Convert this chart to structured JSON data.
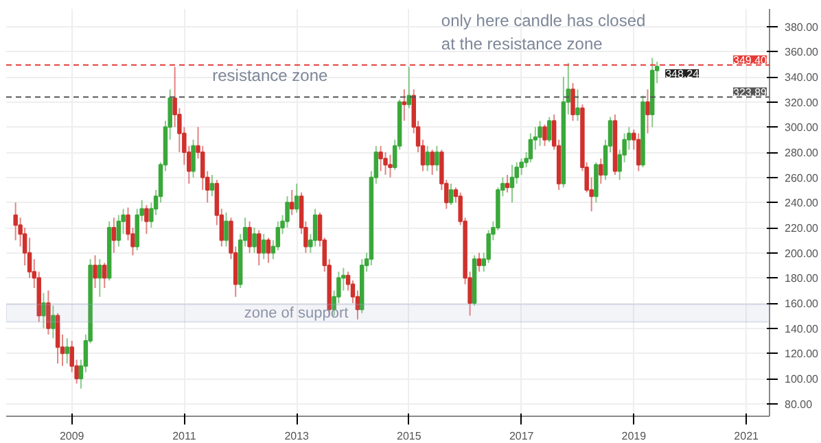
{
  "chart_data": {
    "type": "candlestick",
    "x": [
      "2008-01",
      "2008-02",
      "2008-03",
      "2008-04",
      "2008-05",
      "2008-06",
      "2008-07",
      "2008-08",
      "2008-09",
      "2008-10",
      "2008-11",
      "2008-12",
      "2009-01",
      "2009-02",
      "2009-03",
      "2009-04",
      "2009-05",
      "2009-06",
      "2009-07",
      "2009-08",
      "2009-09",
      "2009-10",
      "2009-11",
      "2009-12",
      "2010-01",
      "2010-02",
      "2010-03",
      "2010-04",
      "2010-05",
      "2010-06",
      "2010-07",
      "2010-08",
      "2010-09",
      "2010-10",
      "2010-11",
      "2010-12",
      "2011-01",
      "2011-02",
      "2011-03",
      "2011-04",
      "2011-05",
      "2011-06",
      "2011-07",
      "2011-08",
      "2011-09",
      "2011-10",
      "2011-11",
      "2011-12",
      "2012-01",
      "2012-02",
      "2012-03",
      "2012-04",
      "2012-05",
      "2012-06",
      "2012-07",
      "2012-08",
      "2012-09",
      "2012-10",
      "2012-11",
      "2012-12",
      "2013-01",
      "2013-02",
      "2013-03",
      "2013-04",
      "2013-05",
      "2013-06",
      "2013-07",
      "2013-08",
      "2013-09",
      "2013-10",
      "2013-11",
      "2013-12",
      "2014-01",
      "2014-02",
      "2014-03",
      "2014-04",
      "2014-05",
      "2014-06",
      "2014-07",
      "2014-08",
      "2014-09",
      "2014-10",
      "2014-11",
      "2014-12",
      "2015-01",
      "2015-02",
      "2015-03",
      "2015-04",
      "2015-05",
      "2015-06",
      "2015-07",
      "2015-08",
      "2015-09",
      "2015-10",
      "2015-11",
      "2015-12",
      "2016-01",
      "2016-02",
      "2016-03",
      "2016-04",
      "2016-05",
      "2016-06",
      "2016-07",
      "2016-08",
      "2016-09",
      "2016-10",
      "2016-11",
      "2016-12",
      "2017-01",
      "2017-02",
      "2017-03",
      "2017-04",
      "2017-05",
      "2017-06",
      "2017-07",
      "2017-08",
      "2017-09",
      "2017-10",
      "2017-11",
      "2017-12",
      "2018-01",
      "2018-02",
      "2018-03",
      "2018-04",
      "2018-05",
      "2018-06",
      "2018-07",
      "2018-08",
      "2018-09",
      "2018-10",
      "2018-11",
      "2018-12",
      "2019-01",
      "2019-02",
      "2019-03",
      "2019-04",
      "2019-05",
      "2019-06"
    ],
    "ohlc": [
      [
        230,
        240,
        210,
        222
      ],
      [
        222,
        228,
        205,
        215
      ],
      [
        215,
        220,
        190,
        200
      ],
      [
        200,
        212,
        180,
        185
      ],
      [
        185,
        195,
        172,
        180
      ],
      [
        180,
        185,
        145,
        150
      ],
      [
        150,
        168,
        140,
        160
      ],
      [
        160,
        170,
        135,
        140
      ],
      [
        140,
        158,
        132,
        150
      ],
      [
        150,
        152,
        112,
        125
      ],
      [
        125,
        135,
        110,
        120
      ],
      [
        120,
        132,
        112,
        125
      ],
      [
        125,
        130,
        105,
        110
      ],
      [
        110,
        115,
        96,
        100
      ],
      [
        100,
        115,
        92,
        110
      ],
      [
        110,
        135,
        105,
        130
      ],
      [
        130,
        195,
        128,
        190
      ],
      [
        190,
        198,
        172,
        180
      ],
      [
        180,
        195,
        165,
        190
      ],
      [
        190,
        192,
        172,
        180
      ],
      [
        180,
        225,
        178,
        220
      ],
      [
        220,
        228,
        200,
        210
      ],
      [
        210,
        230,
        205,
        225
      ],
      [
        225,
        235,
        215,
        230
      ],
      [
        230,
        236,
        210,
        215
      ],
      [
        215,
        220,
        198,
        205
      ],
      [
        205,
        235,
        202,
        230
      ],
      [
        230,
        242,
        225,
        235
      ],
      [
        235,
        238,
        215,
        225
      ],
      [
        225,
        240,
        220,
        235
      ],
      [
        235,
        250,
        230,
        245
      ],
      [
        245,
        272,
        240,
        270
      ],
      [
        270,
        305,
        265,
        300
      ],
      [
        300,
        330,
        290,
        323
      ],
      [
        323,
        348,
        300,
        310
      ],
      [
        310,
        315,
        280,
        295
      ],
      [
        295,
        300,
        270,
        280
      ],
      [
        280,
        285,
        255,
        265
      ],
      [
        265,
        290,
        260,
        285
      ],
      [
        285,
        300,
        275,
        280
      ],
      [
        280,
        285,
        250,
        260
      ],
      [
        260,
        265,
        240,
        250
      ],
      [
        250,
        262,
        245,
        255
      ],
      [
        255,
        258,
        222,
        230
      ],
      [
        230,
        235,
        205,
        210
      ],
      [
        210,
        232,
        205,
        225
      ],
      [
        225,
        228,
        195,
        200
      ],
      [
        200,
        205,
        165,
        175
      ],
      [
        175,
        215,
        172,
        210
      ],
      [
        210,
        228,
        205,
        220
      ],
      [
        220,
        225,
        200,
        205
      ],
      [
        205,
        220,
        200,
        215
      ],
      [
        215,
        218,
        190,
        200
      ],
      [
        200,
        215,
        195,
        210
      ],
      [
        210,
        212,
        192,
        200
      ],
      [
        200,
        210,
        195,
        205
      ],
      [
        205,
        225,
        202,
        220
      ],
      [
        220,
        230,
        215,
        225
      ],
      [
        225,
        245,
        220,
        240
      ],
      [
        240,
        250,
        230,
        235
      ],
      [
        235,
        255,
        232,
        245
      ],
      [
        245,
        248,
        215,
        220
      ],
      [
        220,
        225,
        200,
        205
      ],
      [
        205,
        215,
        200,
        210
      ],
      [
        210,
        235,
        205,
        230
      ],
      [
        230,
        232,
        205,
        210
      ],
      [
        210,
        212,
        185,
        190
      ],
      [
        190,
        195,
        150,
        155
      ],
      [
        155,
        170,
        150,
        165
      ],
      [
        165,
        185,
        160,
        180
      ],
      [
        180,
        188,
        170,
        182
      ],
      [
        182,
        185,
        170,
        175
      ],
      [
        175,
        178,
        160,
        165
      ],
      [
        165,
        170,
        147,
        155
      ],
      [
        155,
        195,
        152,
        190
      ],
      [
        190,
        200,
        185,
        195
      ],
      [
        195,
        265,
        190,
        260
      ],
      [
        260,
        285,
        255,
        280
      ],
      [
        280,
        285,
        265,
        275
      ],
      [
        275,
        280,
        262,
        270
      ],
      [
        270,
        278,
        260,
        268
      ],
      [
        268,
        290,
        266,
        285
      ],
      [
        285,
        322,
        282,
        320
      ],
      [
        320,
        330,
        305,
        318
      ],
      [
        318,
        348,
        315,
        325
      ],
      [
        325,
        330,
        295,
        300
      ],
      [
        300,
        305,
        280,
        285
      ],
      [
        285,
        290,
        265,
        270
      ],
      [
        270,
        285,
        265,
        280
      ],
      [
        280,
        282,
        262,
        270
      ],
      [
        270,
        285,
        265,
        280
      ],
      [
        280,
        282,
        250,
        255
      ],
      [
        255,
        258,
        235,
        240
      ],
      [
        240,
        255,
        238,
        250
      ],
      [
        250,
        252,
        240,
        245
      ],
      [
        245,
        248,
        222,
        225
      ],
      [
        225,
        228,
        175,
        180
      ],
      [
        180,
        185,
        150,
        160
      ],
      [
        160,
        198,
        158,
        195
      ],
      [
        195,
        200,
        185,
        190
      ],
      [
        190,
        200,
        185,
        195
      ],
      [
        195,
        218,
        192,
        215
      ],
      [
        215,
        225,
        210,
        220
      ],
      [
        220,
        252,
        218,
        250
      ],
      [
        250,
        260,
        245,
        255
      ],
      [
        255,
        262,
        248,
        252
      ],
      [
        252,
        270,
        240,
        260
      ],
      [
        260,
        272,
        255,
        268
      ],
      [
        268,
        275,
        262,
        272
      ],
      [
        272,
        280,
        268,
        275
      ],
      [
        275,
        295,
        272,
        290
      ],
      [
        290,
        300,
        282,
        292
      ],
      [
        292,
        305,
        285,
        300
      ],
      [
        300,
        302,
        285,
        290
      ],
      [
        290,
        308,
        288,
        305
      ],
      [
        305,
        310,
        282,
        285
      ],
      [
        285,
        290,
        250,
        255
      ],
      [
        255,
        340,
        252,
        320
      ],
      [
        320,
        351,
        310,
        330
      ],
      [
        330,
        335,
        305,
        310
      ],
      [
        310,
        330,
        305,
        315
      ],
      [
        315,
        318,
        265,
        268
      ],
      [
        268,
        272,
        248,
        250
      ],
      [
        250,
        260,
        233,
        245
      ],
      [
        245,
        272,
        240,
        270
      ],
      [
        270,
        275,
        255,
        262
      ],
      [
        262,
        290,
        258,
        285
      ],
      [
        285,
        308,
        280,
        305
      ],
      [
        305,
        310,
        262,
        265
      ],
      [
        265,
        282,
        258,
        278
      ],
      [
        278,
        295,
        272,
        290
      ],
      [
        290,
        300,
        282,
        295
      ],
      [
        295,
        298,
        282,
        290
      ],
      [
        290,
        295,
        265,
        270
      ],
      [
        270,
        325,
        268,
        320
      ],
      [
        320,
        330,
        295,
        310
      ],
      [
        310,
        355,
        300,
        345
      ],
      [
        345,
        352,
        335,
        348.24
      ]
    ],
    "colors": [
      "#d0312d",
      "#d0312d",
      "#d0312d",
      "#d0312d",
      "#d0312d",
      "#d0312d",
      "#3aa83a",
      "#d0312d",
      "#3aa83a",
      "#d0312d",
      "#d0312d",
      "#3aa83a",
      "#d0312d",
      "#d0312d",
      "#3aa83a",
      "#3aa83a",
      "#3aa83a",
      "#d0312d",
      "#3aa83a",
      "#d0312d",
      "#3aa83a",
      "#d0312d",
      "#3aa83a",
      "#3aa83a",
      "#d0312d",
      "#d0312d",
      "#3aa83a",
      "#3aa83a",
      "#d0312d",
      "#3aa83a",
      "#3aa83a",
      "#3aa83a",
      "#3aa83a",
      "#3aa83a",
      "#d0312d",
      "#d0312d",
      "#d0312d",
      "#d0312d",
      "#3aa83a",
      "#d0312d",
      "#d0312d",
      "#d0312d",
      "#3aa83a",
      "#d0312d",
      "#d0312d",
      "#3aa83a",
      "#d0312d",
      "#d0312d",
      "#3aa83a",
      "#3aa83a",
      "#d0312d",
      "#3aa83a",
      "#d0312d",
      "#3aa83a",
      "#d0312d",
      "#3aa83a",
      "#3aa83a",
      "#3aa83a",
      "#3aa83a",
      "#d0312d",
      "#3aa83a",
      "#d0312d",
      "#d0312d",
      "#3aa83a",
      "#3aa83a",
      "#d0312d",
      "#d0312d",
      "#d0312d",
      "#3aa83a",
      "#3aa83a",
      "#3aa83a",
      "#d0312d",
      "#d0312d",
      "#d0312d",
      "#3aa83a",
      "#3aa83a",
      "#3aa83a",
      "#3aa83a",
      "#d0312d",
      "#d0312d",
      "#d0312d",
      "#3aa83a",
      "#3aa83a",
      "#d0312d",
      "#3aa83a",
      "#d0312d",
      "#d0312d",
      "#d0312d",
      "#3aa83a",
      "#d0312d",
      "#3aa83a",
      "#d0312d",
      "#d0312d",
      "#3aa83a",
      "#d0312d",
      "#d0312d",
      "#d0312d",
      "#d0312d",
      "#3aa83a",
      "#d0312d",
      "#3aa83a",
      "#3aa83a",
      "#3aa83a",
      "#3aa83a",
      "#3aa83a",
      "#d0312d",
      "#3aa83a",
      "#3aa83a",
      "#3aa83a",
      "#3aa83a",
      "#3aa83a",
      "#3aa83a",
      "#3aa83a",
      "#d0312d",
      "#3aa83a",
      "#d0312d",
      "#d0312d",
      "#3aa83a",
      "#3aa83a",
      "#d0312d",
      "#3aa83a",
      "#d0312d",
      "#d0312d",
      "#d0312d",
      "#3aa83a",
      "#d0312d",
      "#3aa83a",
      "#3aa83a",
      "#d0312d",
      "#3aa83a",
      "#3aa83a",
      "#3aa83a",
      "#d0312d",
      "#d0312d",
      "#3aa83a",
      "#d0312d",
      "#3aa83a",
      "#3aa83a"
    ],
    "xlim": [
      "2007-11",
      "2021-06"
    ],
    "xticks": [
      {
        "value": "2009-01",
        "label": "2009"
      },
      {
        "value": "2011-01",
        "label": "2011"
      },
      {
        "value": "2013-01",
        "label": "2013"
      },
      {
        "value": "2015-01",
        "label": "2015"
      },
      {
        "value": "2017-01",
        "label": "2017"
      },
      {
        "value": "2019-01",
        "label": "2019"
      },
      {
        "value": "2021-01",
        "label": "2021"
      }
    ],
    "ylim": [
      70,
      394
    ],
    "yticks": [
      {
        "value": 80,
        "label": "80.00"
      },
      {
        "value": 100,
        "label": "100.00"
      },
      {
        "value": 120,
        "label": "120.00"
      },
      {
        "value": 140,
        "label": "140.00"
      },
      {
        "value": 160,
        "label": "160.00"
      },
      {
        "value": 180,
        "label": "180.00"
      },
      {
        "value": 200,
        "label": "200.00"
      },
      {
        "value": 220,
        "label": "220.00"
      },
      {
        "value": 240,
        "label": "240.00"
      },
      {
        "value": 260,
        "label": "260.00"
      },
      {
        "value": 280,
        "label": "280.00"
      },
      {
        "value": 300,
        "label": "300.00"
      },
      {
        "value": 320,
        "label": "320.00"
      },
      {
        "value": 340,
        "label": "340.00"
      },
      {
        "value": 360,
        "label": "360.00"
      },
      {
        "value": 380,
        "label": "380.00"
      }
    ],
    "ref_lines": [
      {
        "axis": "y",
        "value": 349.4,
        "label": "349.40",
        "color": "#e53935",
        "line_style": "dashed"
      },
      {
        "axis": "y",
        "value": 323.89,
        "label": "323.89",
        "color": "#555555",
        "line_style": "dashed"
      }
    ],
    "bands": [
      {
        "axis": "y",
        "from": 145,
        "to": 159,
        "label": "zone of support",
        "color": "#9aa6c8"
      }
    ],
    "annotations": [
      {
        "text": "348.24",
        "x": "2019-06",
        "y": 348.24
      },
      "resistance zone",
      "only here candle has closed\nat the resistance zone"
    ],
    "grid": true
  }
}
